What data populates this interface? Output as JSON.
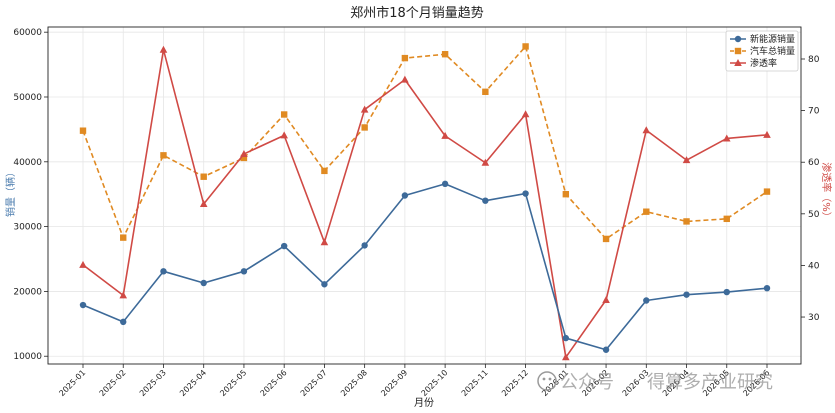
{
  "chart_data": {
    "type": "line",
    "title": "郑州市18个月销量趋势",
    "xlabel": "月份",
    "ylabel_left": "销量（辆）",
    "ylabel_right": "渗透率（%）",
    "categories": [
      "2025-01",
      "2025-02",
      "2025-03",
      "2025-04",
      "2025-05",
      "2025-06",
      "2025-07",
      "2025-08",
      "2025-09",
      "2025-10",
      "2025-11",
      "2025-12",
      "2026-01",
      "2026-02",
      "2026-03",
      "2026-04",
      "2026-05",
      "2026-06"
    ],
    "left_axis": {
      "ylim": [
        8800,
        60800
      ],
      "ticks": [
        10000,
        20000,
        30000,
        40000,
        50000,
        60000
      ]
    },
    "right_axis": {
      "ylim": [
        20.9,
        86.2
      ],
      "ticks": [
        20,
        30,
        40,
        50,
        60,
        70,
        80
      ]
    },
    "series": [
      {
        "name": "新能源销量",
        "axis": "left",
        "color": "#3d6a99",
        "marker": "circle",
        "style": "solid",
        "values": [
          17900,
          15300,
          23100,
          21300,
          23100,
          27000,
          21100,
          27100,
          34800,
          36600,
          34000,
          35100,
          12800,
          11000,
          18600,
          19500,
          19900,
          20500
        ]
      },
      {
        "name": "汽车总销量",
        "axis": "left",
        "color": "#e08a22",
        "marker": "square",
        "style": "dashed",
        "values": [
          44800,
          28300,
          41000,
          37700,
          40600,
          47300,
          38600,
          45300,
          56000,
          56600,
          50800,
          57800,
          35000,
          28100,
          32300,
          30800,
          31200,
          35400
        ]
      },
      {
        "name": "渗透率",
        "axis": "right",
        "color": "#d04a45",
        "marker": "triangle",
        "style": "solid",
        "values": [
          40.1,
          34.2,
          81.8,
          51.9,
          61.6,
          65.2,
          44.5,
          70.2,
          76.0,
          65.1,
          59.9,
          69.3,
          22.2,
          33.3,
          66.2,
          60.4,
          64.6,
          65.3
        ]
      }
    ],
    "legend_position": "top-right",
    "grid": true
  },
  "watermark": {
    "brand": "公众号",
    "name": "得算多产业研究"
  }
}
